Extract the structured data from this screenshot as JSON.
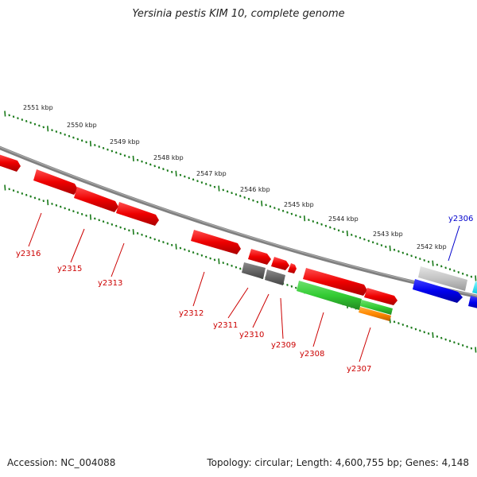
{
  "title": "Yersinia pestis KIM 10, complete genome",
  "accession": "Accession: NC_004088",
  "summary": "Topology: circular; Length: 4,600,755 bp; Genes: 4,148",
  "colors": {
    "forward_gene": "#ff0000",
    "reverse_gene_blue": "#0000ff",
    "rna_gene_gray": "#bbbbbb",
    "cyan_feature": "#00e5ff",
    "green_feature": "#33cc33",
    "orange_feature": "#ff8800",
    "dark_feature": "#666666",
    "backbone": "#808080",
    "tick": "#1a7a1a",
    "label_red": "#cc0000",
    "label_blue": "#0000cc"
  },
  "kbp_labels": [
    "2551 kbp",
    "2550 kbp",
    "2549 kbp",
    "2548 kbp",
    "2547 kbp",
    "2546 kbp",
    "2545 kbp",
    "2544 kbp",
    "2543 kbp",
    "2542 kbp"
  ],
  "gene_labels": [
    {
      "text": "y2316",
      "color": "red"
    },
    {
      "text": "y2315",
      "color": "red"
    },
    {
      "text": "y2313",
      "color": "red"
    },
    {
      "text": "y2312",
      "color": "red"
    },
    {
      "text": "y2311",
      "color": "red"
    },
    {
      "text": "y2310",
      "color": "red"
    },
    {
      "text": "y2309",
      "color": "red"
    },
    {
      "text": "y2308",
      "color": "red"
    },
    {
      "text": "y2307",
      "color": "red"
    },
    {
      "text": "y2306",
      "color": "blue"
    }
  ]
}
